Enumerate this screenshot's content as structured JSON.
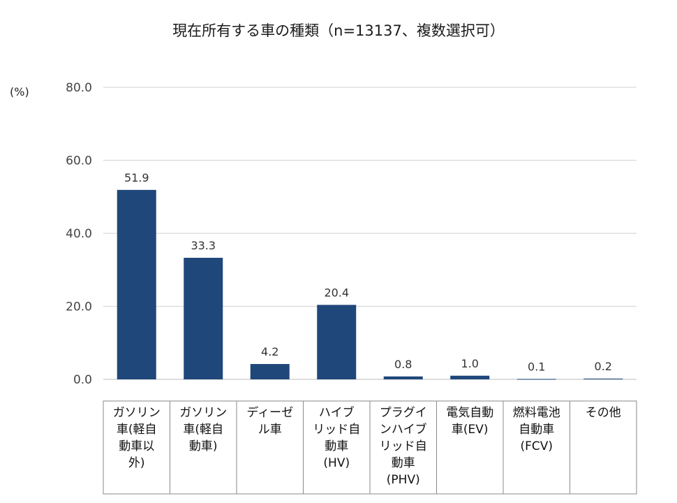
{
  "chart_data": {
    "type": "bar",
    "title": "現在所有する車の種類（n=13137、複数選択可）",
    "ylabel": "(%)",
    "xlabel": "",
    "ylim": [
      0,
      80
    ],
    "yticks": [
      "0.0",
      "20.0",
      "40.0",
      "60.0",
      "80.0"
    ],
    "ytick_values": [
      0,
      20,
      40,
      60,
      80
    ],
    "grid": true,
    "bar_color": "#1f477a",
    "categories": [
      [
        "ガソリン",
        "車(軽自",
        "動車以",
        "外)"
      ],
      [
        "ガソリン",
        "車(軽自",
        "動車)"
      ],
      [
        "ディーゼ",
        "ル車"
      ],
      [
        "ハイブ",
        "リッド自",
        "動車",
        "(HV)"
      ],
      [
        "プラグイ",
        "ンハイブ",
        "リッド自",
        "動車",
        "(PHV)"
      ],
      [
        "電気自動",
        "車(EV)"
      ],
      [
        "燃料電池",
        "自動車",
        "(FCV)"
      ],
      [
        "その他"
      ]
    ],
    "values": [
      51.9,
      33.3,
      4.2,
      20.4,
      0.8,
      1.0,
      0.1,
      0.2
    ],
    "value_labels": [
      "51.9",
      "33.3",
      "4.2",
      "20.4",
      "0.8",
      "1.0",
      "0.1",
      "0.2"
    ]
  }
}
